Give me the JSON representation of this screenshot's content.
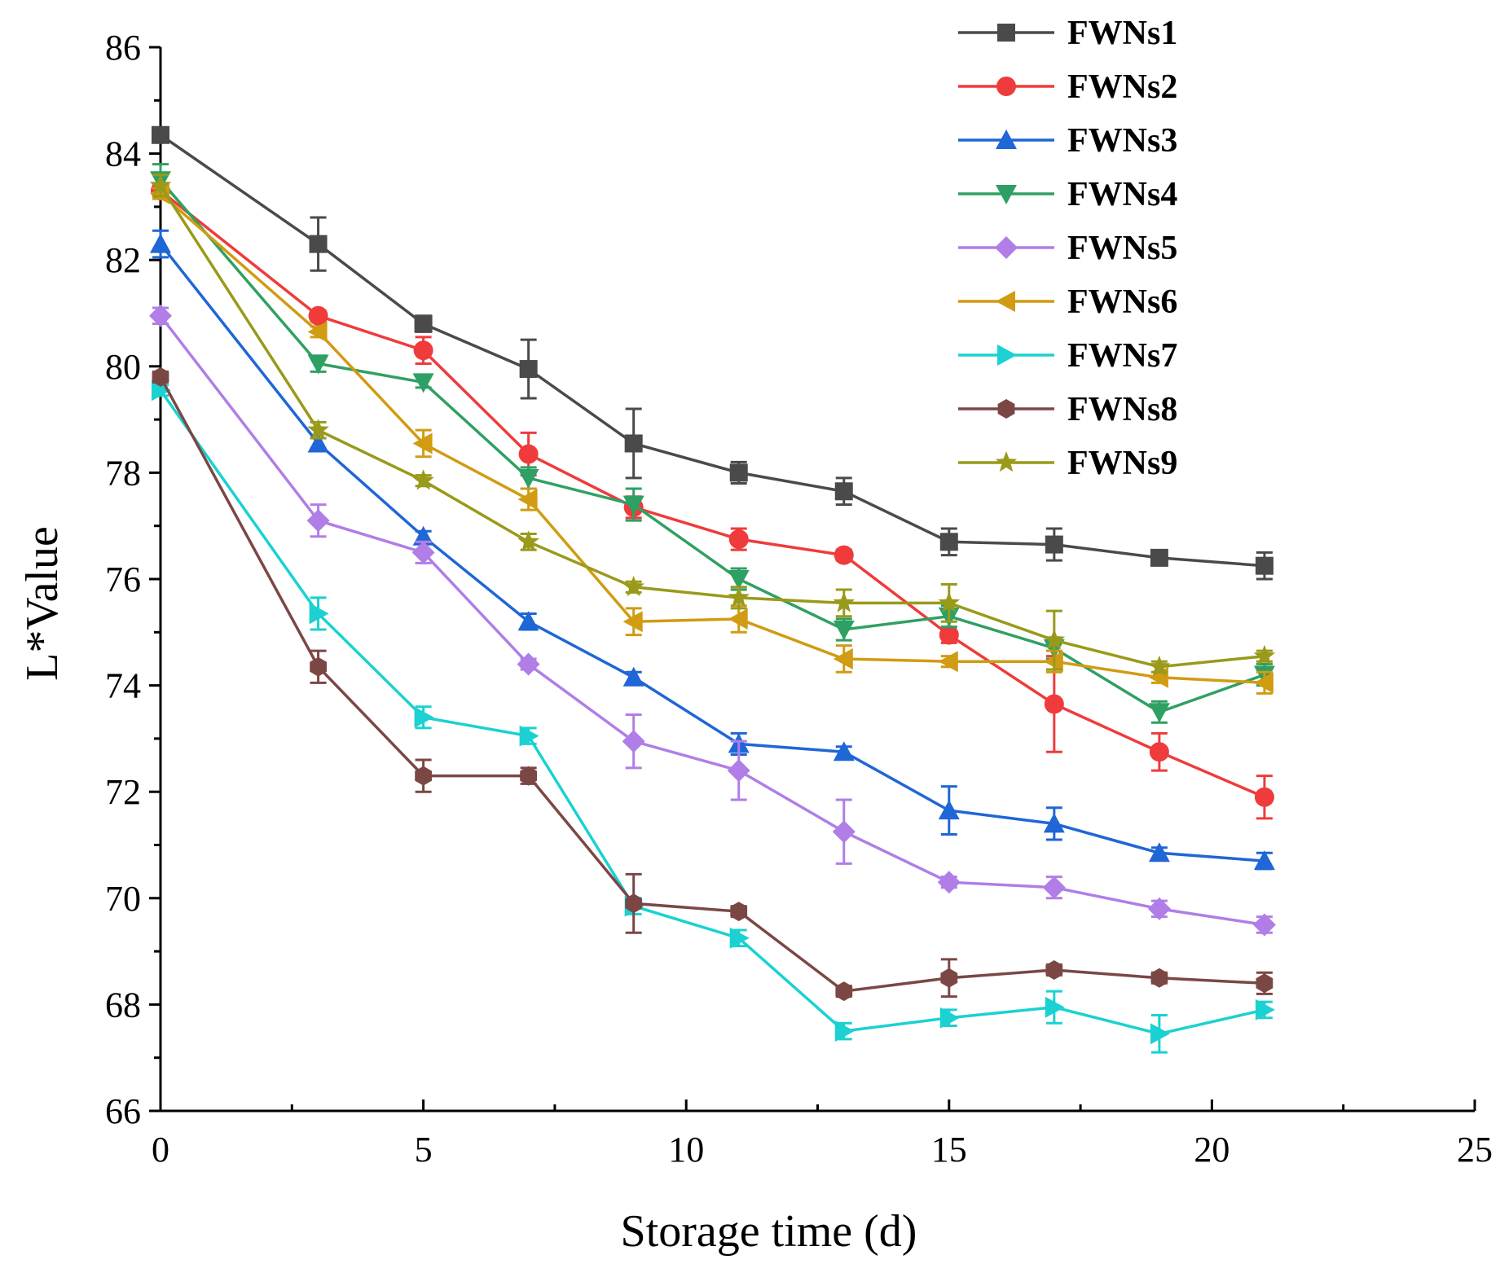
{
  "chart_data": {
    "type": "line",
    "xlabel": "Storage time (d)",
    "ylabel": "L*Value",
    "xlim": [
      0,
      25
    ],
    "ylim": [
      66,
      86
    ],
    "xticks": [
      0,
      5,
      10,
      15,
      20,
      25
    ],
    "yticks": [
      66,
      68,
      70,
      72,
      74,
      76,
      78,
      80,
      82,
      84,
      86
    ],
    "legend_position": "top-right",
    "x": [
      0,
      3,
      5,
      7,
      9,
      11,
      13,
      15,
      17,
      19,
      21
    ],
    "series": [
      {
        "name": "FWNs1",
        "color": "#4a4a4a",
        "marker": "square",
        "values": [
          84.35,
          82.3,
          80.8,
          79.95,
          78.55,
          78.0,
          77.65,
          76.7,
          76.65,
          76.4,
          76.25
        ],
        "errors": [
          0.1,
          0.5,
          0.15,
          0.55,
          0.65,
          0.2,
          0.25,
          0.25,
          0.3,
          0.1,
          0.25
        ]
      },
      {
        "name": "FWNs2",
        "color": "#ef3b3b",
        "marker": "circle",
        "values": [
          83.3,
          80.95,
          80.3,
          78.35,
          77.35,
          76.75,
          76.45,
          74.95,
          73.65,
          72.75,
          71.9
        ],
        "errors": [
          0.1,
          0.1,
          0.25,
          0.4,
          0.2,
          0.2,
          0.1,
          0.15,
          0.9,
          0.35,
          0.4
        ]
      },
      {
        "name": "FWNs3",
        "color": "#1f66d6",
        "marker": "triangle-up",
        "values": [
          82.3,
          78.55,
          76.8,
          75.2,
          74.15,
          72.9,
          72.75,
          71.65,
          71.4,
          70.85,
          70.7
        ],
        "errors": [
          0.25,
          0.1,
          0.1,
          0.15,
          0.1,
          0.2,
          0.1,
          0.45,
          0.3,
          0.1,
          0.15
        ]
      },
      {
        "name": "FWNs4",
        "color": "#2fa063",
        "marker": "triangle-down",
        "values": [
          83.5,
          80.05,
          79.7,
          77.9,
          77.4,
          76.0,
          75.05,
          75.3,
          74.7,
          73.5,
          74.2
        ],
        "errors": [
          0.3,
          0.15,
          0.1,
          0.2,
          0.3,
          0.2,
          0.2,
          0.2,
          0.2,
          0.2,
          0.2
        ]
      },
      {
        "name": "FWNs5",
        "color": "#b07ee6",
        "marker": "diamond",
        "values": [
          80.95,
          77.1,
          76.5,
          74.4,
          72.95,
          72.4,
          71.25,
          70.3,
          70.2,
          69.8,
          69.5
        ],
        "errors": [
          0.15,
          0.3,
          0.2,
          0.1,
          0.5,
          0.55,
          0.6,
          0.1,
          0.2,
          0.15,
          0.15
        ]
      },
      {
        "name": "FWNs6",
        "color": "#d19b12",
        "marker": "triangle-left",
        "values": [
          83.25,
          80.65,
          78.55,
          77.5,
          75.2,
          75.25,
          74.5,
          74.45,
          74.45,
          74.15,
          74.05
        ],
        "errors": [
          0.1,
          0.1,
          0.25,
          0.2,
          0.25,
          0.25,
          0.25,
          0.1,
          0.2,
          0.1,
          0.2
        ]
      },
      {
        "name": "FWNs7",
        "color": "#1bd1d1",
        "marker": "triangle-right",
        "values": [
          79.55,
          75.35,
          73.4,
          73.05,
          69.85,
          69.25,
          67.5,
          67.75,
          67.95,
          67.45,
          67.9
        ],
        "errors": [
          0.1,
          0.3,
          0.2,
          0.15,
          0.15,
          0.15,
          0.15,
          0.15,
          0.3,
          0.35,
          0.15
        ]
      },
      {
        "name": "FWNs8",
        "color": "#7b4744",
        "marker": "hexagon",
        "values": [
          79.8,
          74.35,
          72.3,
          72.3,
          69.9,
          69.75,
          68.25,
          68.5,
          68.65,
          68.5,
          68.4
        ],
        "errors": [
          0.1,
          0.3,
          0.3,
          0.15,
          0.55,
          0.1,
          0.1,
          0.35,
          0.1,
          0.1,
          0.2
        ]
      },
      {
        "name": "FWNs9",
        "color": "#999a1a",
        "marker": "star",
        "values": [
          83.4,
          78.8,
          77.85,
          76.7,
          75.85,
          75.65,
          75.55,
          75.55,
          74.85,
          74.35,
          74.55
        ],
        "errors": [
          0.2,
          0.15,
          0.1,
          0.15,
          0.1,
          0.2,
          0.25,
          0.35,
          0.55,
          0.1,
          0.1
        ]
      }
    ]
  }
}
